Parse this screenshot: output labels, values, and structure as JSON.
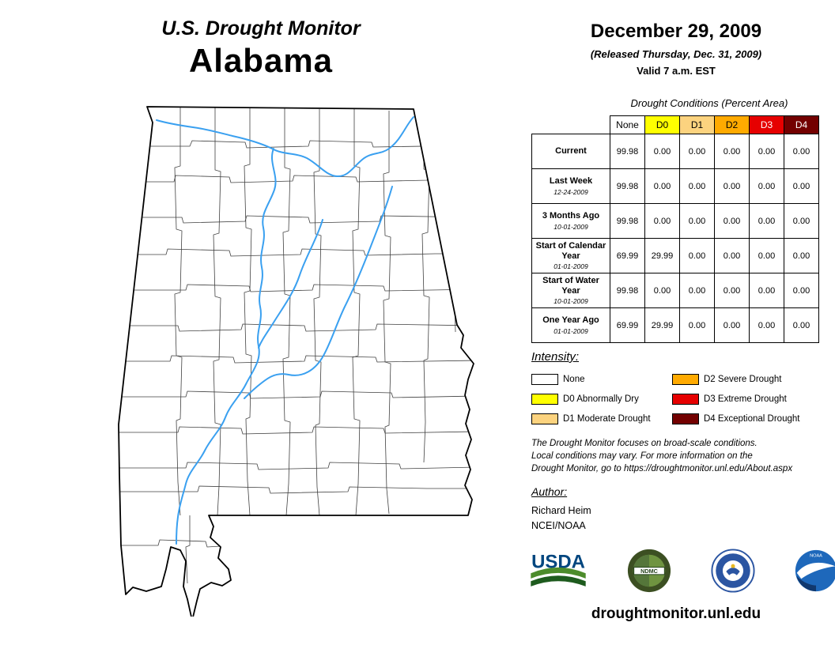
{
  "header": {
    "title_line1": "U.S. Drought Monitor",
    "state": "Alabama",
    "date": "December 29, 2009",
    "released": "(Released Thursday, Dec. 31, 2009)",
    "valid": "Valid 7 a.m. EST"
  },
  "table": {
    "title": "Drought Conditions (Percent Area)",
    "columns": [
      "None",
      "D0",
      "D1",
      "D2",
      "D3",
      "D4"
    ],
    "column_colors": [
      "#FFFFFF",
      "#FFFF00",
      "#FCD37F",
      "#FFAA00",
      "#E60000",
      "#730000"
    ],
    "column_text_colors": [
      "#000000",
      "#000000",
      "#000000",
      "#000000",
      "#FFFFFF",
      "#FFFFFF"
    ],
    "rows": [
      {
        "label": "Current",
        "date": "",
        "values": [
          "99.98",
          "0.00",
          "0.00",
          "0.00",
          "0.00",
          "0.00"
        ]
      },
      {
        "label": "Last Week",
        "date": "12-24-2009",
        "values": [
          "99.98",
          "0.00",
          "0.00",
          "0.00",
          "0.00",
          "0.00"
        ]
      },
      {
        "label": "3 Months Ago",
        "date": "10-01-2009",
        "values": [
          "99.98",
          "0.00",
          "0.00",
          "0.00",
          "0.00",
          "0.00"
        ]
      },
      {
        "label": "Start of Calendar Year",
        "date": "01-01-2009",
        "values": [
          "69.99",
          "29.99",
          "0.00",
          "0.00",
          "0.00",
          "0.00"
        ]
      },
      {
        "label": "Start of Water Year",
        "date": "10-01-2009",
        "values": [
          "99.98",
          "0.00",
          "0.00",
          "0.00",
          "0.00",
          "0.00"
        ]
      },
      {
        "label": "One Year Ago",
        "date": "01-01-2009",
        "values": [
          "69.99",
          "29.99",
          "0.00",
          "0.00",
          "0.00",
          "0.00"
        ]
      }
    ]
  },
  "legend": {
    "title": "Intensity:",
    "items": [
      {
        "label": "None",
        "color": "#FFFFFF"
      },
      {
        "label": "D0 Abnormally Dry",
        "color": "#FFFF00"
      },
      {
        "label": "D1 Moderate Drought",
        "color": "#FCD37F"
      },
      {
        "label": "D2 Severe Drought",
        "color": "#FFAA00"
      },
      {
        "label": "D3 Extreme Drought",
        "color": "#E60000"
      },
      {
        "label": "D4 Exceptional Drought",
        "color": "#730000"
      }
    ]
  },
  "disclaimer": {
    "text": "The Drought Monitor focuses on broad-scale conditions.\nLocal conditions may vary. For more information on the\nDrought Monitor, go to https://droughtmonitor.unl.edu/About.aspx"
  },
  "author": {
    "heading": "Author:",
    "name": "Richard Heim",
    "org": "NCEI/NOAA"
  },
  "logos": {
    "usda": "USDA",
    "ndmc": "NDMC",
    "noaa": "NOAA",
    "names": [
      "usda-logo",
      "ndmc-logo",
      "commerce-seal-logo",
      "noaa-logo"
    ]
  },
  "footer": {
    "url": "droughtmonitor.unl.edu"
  },
  "map": {
    "region": "Alabama county map with rivers",
    "outline_color": "#000000",
    "county_line_color": "#404040",
    "river_color": "#3aa0f0"
  }
}
